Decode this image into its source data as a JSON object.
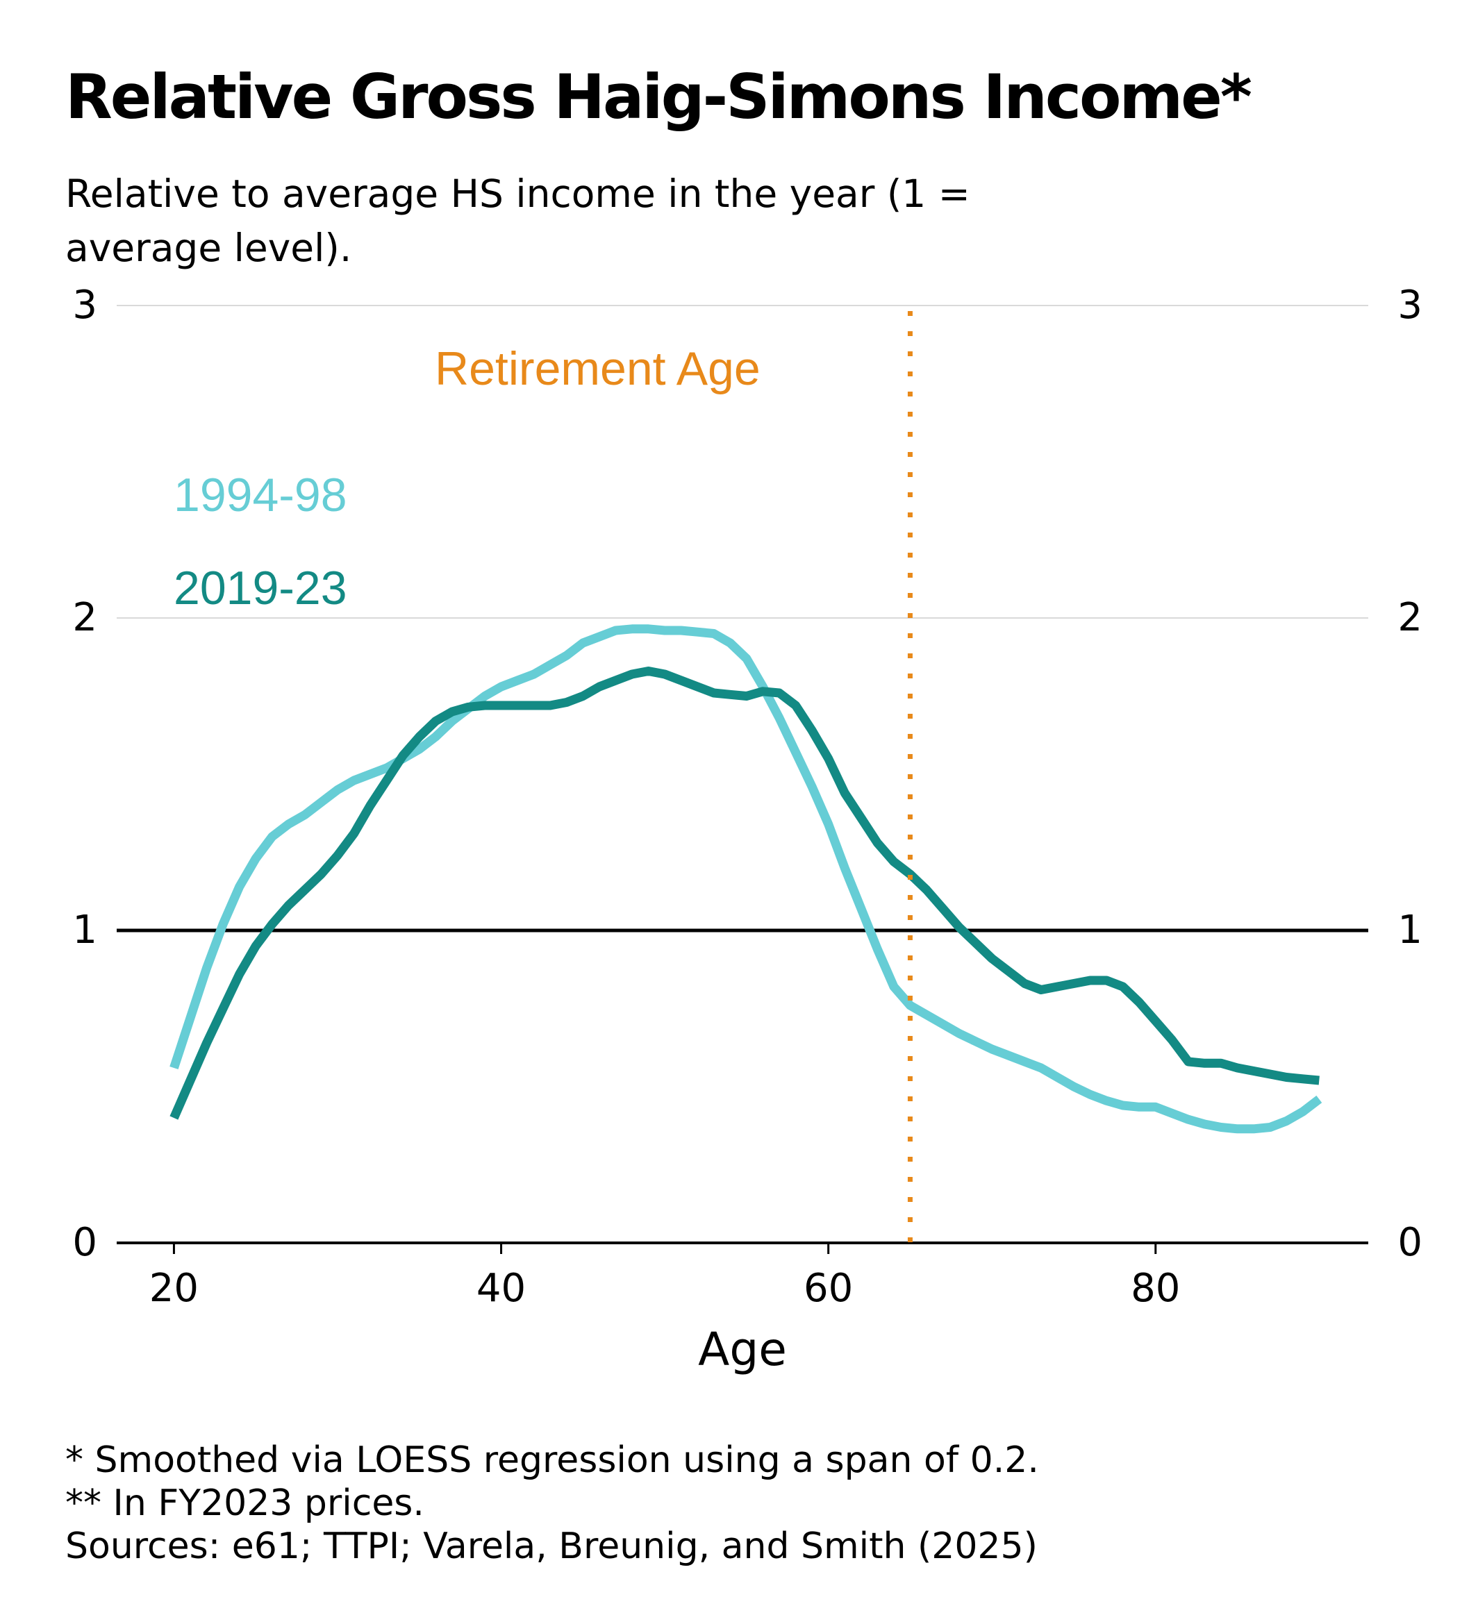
{
  "chart_data": {
    "type": "line",
    "title": "Relative Gross Haig-Simons Income*",
    "subtitle": "Relative to average HS income in the year (1 = average level).",
    "xlabel": "Age",
    "ylabel": "",
    "xlim": [
      16.5,
      93
    ],
    "ylim": [
      0,
      3
    ],
    "x_ticks": [
      "20",
      "40",
      "60",
      "80"
    ],
    "y_ticks": [
      "0",
      "1",
      "2",
      "3"
    ],
    "y_axis": "both sides",
    "gridlines": "horizontal",
    "reference_line_y": 1,
    "retirement_age": 65,
    "retirement_label": "Retirement Age",
    "series": [
      {
        "name": "1994-98",
        "color": "#66cdd5",
        "x": [
          20,
          21,
          22,
          23,
          24,
          25,
          26,
          27,
          28,
          29,
          30,
          31,
          32,
          33,
          34,
          35,
          36,
          37,
          38,
          39,
          40,
          41,
          42,
          43,
          44,
          45,
          46,
          47,
          48,
          49,
          50,
          51,
          52,
          53,
          54,
          55,
          56,
          57,
          58,
          59,
          60,
          61,
          62,
          63,
          64,
          65,
          66,
          67,
          68,
          69,
          70,
          71,
          72,
          73,
          74,
          75,
          76,
          77,
          78,
          79,
          80,
          81,
          82,
          83,
          84,
          85,
          86,
          87,
          88,
          89,
          90
        ],
        "values": [
          0.56,
          0.72,
          0.88,
          1.02,
          1.14,
          1.23,
          1.3,
          1.34,
          1.37,
          1.41,
          1.45,
          1.48,
          1.5,
          1.52,
          1.55,
          1.58,
          1.62,
          1.67,
          1.71,
          1.75,
          1.78,
          1.8,
          1.82,
          1.85,
          1.88,
          1.92,
          1.94,
          1.96,
          1.965,
          1.965,
          1.96,
          1.96,
          1.955,
          1.95,
          1.92,
          1.87,
          1.78,
          1.68,
          1.57,
          1.46,
          1.34,
          1.2,
          1.07,
          0.94,
          0.82,
          0.76,
          0.73,
          0.7,
          0.67,
          0.645,
          0.62,
          0.6,
          0.58,
          0.56,
          0.53,
          0.5,
          0.475,
          0.455,
          0.44,
          0.435,
          0.435,
          0.415,
          0.395,
          0.38,
          0.37,
          0.365,
          0.365,
          0.37,
          0.39,
          0.42,
          0.46
        ]
      },
      {
        "name": "2019-23",
        "color": "#138a84",
        "x": [
          20,
          21,
          22,
          23,
          24,
          25,
          26,
          27,
          28,
          29,
          30,
          31,
          32,
          33,
          34,
          35,
          36,
          37,
          38,
          39,
          40,
          41,
          42,
          43,
          44,
          45,
          46,
          47,
          48,
          49,
          50,
          51,
          52,
          53,
          54,
          55,
          56,
          57,
          58,
          59,
          60,
          61,
          62,
          63,
          64,
          65,
          66,
          67,
          68,
          69,
          70,
          71,
          72,
          73,
          74,
          75,
          76,
          77,
          78,
          79,
          80,
          81,
          82,
          83,
          84,
          85,
          86,
          87,
          88,
          89,
          90
        ],
        "values": [
          0.4,
          0.52,
          0.64,
          0.75,
          0.86,
          0.95,
          1.02,
          1.08,
          1.13,
          1.18,
          1.24,
          1.31,
          1.4,
          1.48,
          1.56,
          1.62,
          1.67,
          1.7,
          1.715,
          1.72,
          1.72,
          1.72,
          1.72,
          1.72,
          1.73,
          1.75,
          1.78,
          1.8,
          1.82,
          1.83,
          1.82,
          1.8,
          1.78,
          1.76,
          1.755,
          1.75,
          1.765,
          1.76,
          1.72,
          1.64,
          1.55,
          1.44,
          1.36,
          1.28,
          1.22,
          1.18,
          1.13,
          1.07,
          1.01,
          0.96,
          0.91,
          0.87,
          0.83,
          0.81,
          0.82,
          0.83,
          0.84,
          0.84,
          0.82,
          0.77,
          0.71,
          0.65,
          0.58,
          0.575,
          0.575,
          0.56,
          0.55,
          0.54,
          0.53,
          0.525,
          0.52
        ]
      }
    ]
  },
  "footnotes": [
    "* Smoothed via LOESS regression using a span of 0.2.",
    "** In FY2023 prices.",
    "Sources: e61; TTPI; Varela, Breunig, and Smith (2025)"
  ]
}
